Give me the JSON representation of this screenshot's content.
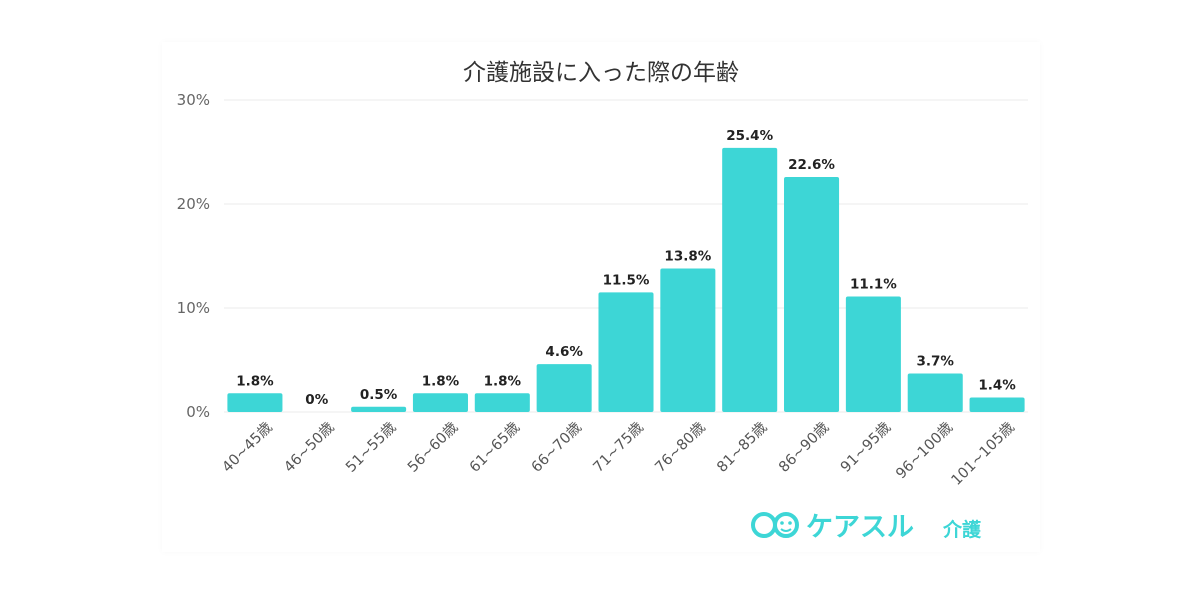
{
  "chart_data": {
    "type": "bar",
    "title": "介護施設に入った際の年齢",
    "categories": [
      "40~45歳",
      "46~50歳",
      "51~55歳",
      "56~60歳",
      "61~65歳",
      "66~70歳",
      "71~75歳",
      "76~80歳",
      "81~85歳",
      "86~90歳",
      "91~95歳",
      "96~100歳",
      "101~105歳"
    ],
    "values": [
      1.8,
      0,
      0.5,
      1.8,
      1.8,
      4.6,
      11.5,
      13.8,
      25.4,
      22.6,
      11.1,
      3.7,
      1.4
    ],
    "data_labels": [
      "1.8%",
      "0%",
      "0.5%",
      "1.8%",
      "1.8%",
      "4.6%",
      "11.5%",
      "13.8%",
      "25.4%",
      "22.6%",
      "11.1%",
      "3.7%",
      "1.4%"
    ],
    "ylim": [
      0,
      30
    ],
    "yticks": [
      0,
      10,
      20,
      30
    ],
    "ytick_labels": [
      "0%",
      "10%",
      "20%",
      "30%"
    ],
    "grid": true,
    "bar_color": "#3dd6d6",
    "grid_color": "#ebebeb"
  },
  "logo": {
    "text": "ケアスル",
    "sub": "介護",
    "color": "#3dd6d6"
  }
}
